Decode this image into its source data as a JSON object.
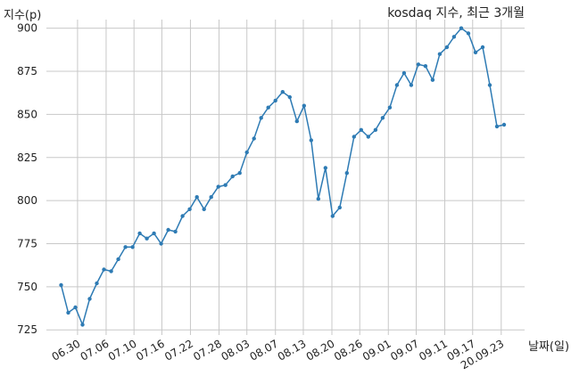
{
  "chart_data": {
    "type": "line",
    "title": "kosdaq 지수, 최근 3개월",
    "xlabel": "날짜(일)",
    "ylabel": "지수(p)",
    "ylim": [
      722,
      905
    ],
    "yticks": [
      725,
      750,
      775,
      800,
      825,
      850,
      875,
      900
    ],
    "xtick_labels": [
      "06.30",
      "07.06",
      "07.10",
      "07.16",
      "07.22",
      "07.28",
      "08.03",
      "08.07",
      "08.13",
      "08.20",
      "08.26",
      "09.01",
      "09.07",
      "09.11",
      "09.17",
      "20.09.23"
    ],
    "xtick_index": [
      2.3,
      6.3,
      10.2,
      14.1,
      18.1,
      22.1,
      26.0,
      30.0,
      33.9,
      37.9,
      41.8,
      45.8,
      49.7,
      53.7,
      57.6,
      61.6
    ],
    "grid": true,
    "series": [
      {
        "color": "#2e7bb4",
        "values": [
          751,
          735,
          738,
          728,
          743,
          752,
          760,
          759,
          766,
          773,
          773,
          781,
          778,
          781,
          775,
          783,
          782,
          791,
          795,
          802,
          795,
          802,
          808,
          809,
          814,
          816,
          828,
          836,
          848,
          854,
          858,
          863,
          860,
          846,
          855,
          835,
          801,
          819,
          791,
          796,
          816,
          837,
          841,
          837,
          841,
          848,
          854,
          867,
          874,
          867,
          879,
          878,
          870,
          885,
          889,
          895,
          900,
          897,
          886,
          889,
          867,
          843,
          844
        ]
      }
    ]
  }
}
